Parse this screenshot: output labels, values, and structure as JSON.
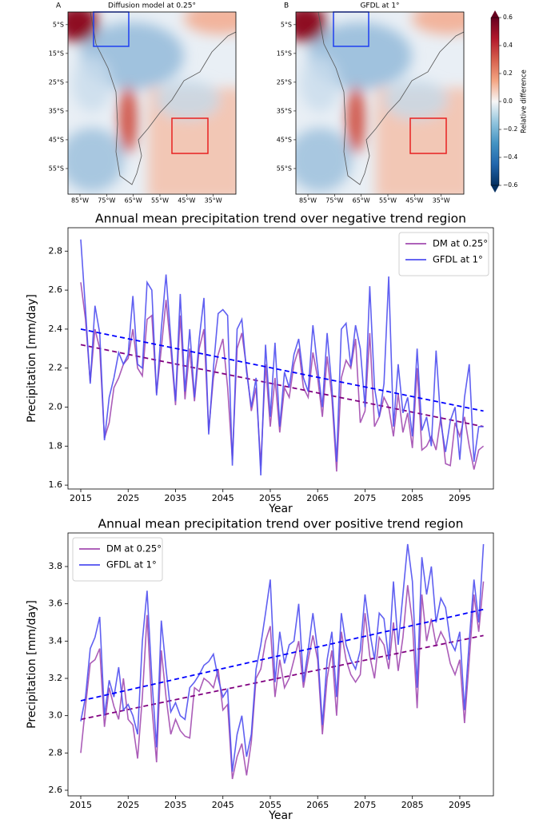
{
  "chart_data": [
    {
      "type": "map",
      "panel": "A",
      "title": "Diffusion model at 0.25°",
      "xlim": [
        -89.5,
        -26.5
      ],
      "ylim": [
        -63.9,
        -0.6
      ],
      "xticks": [
        {
          "value": -85,
          "label": "85°W"
        },
        {
          "value": -75,
          "label": "75°W"
        },
        {
          "value": -65,
          "label": "65°W"
        },
        {
          "value": -55,
          "label": "55°W"
        },
        {
          "value": -45,
          "label": "45°W"
        },
        {
          "value": -35,
          "label": "35°W"
        }
      ],
      "yticks": [
        {
          "value": -5,
          "label": "5°S"
        },
        {
          "value": -15,
          "label": "15°S"
        },
        {
          "value": -25,
          "label": "25°S"
        },
        {
          "value": -35,
          "label": "35°S"
        },
        {
          "value": -45,
          "label": "45°S"
        },
        {
          "value": -55,
          "label": "55°S"
        }
      ]
    },
    {
      "type": "map",
      "panel": "B",
      "title": "GFDL at 1°",
      "xlim": [
        -89.5,
        -26.5
      ],
      "ylim": [
        -63.9,
        -0.6
      ],
      "xticks": [
        {
          "value": -85,
          "label": "85°W"
        },
        {
          "value": -75,
          "label": "75°W"
        },
        {
          "value": -65,
          "label": "65°W"
        },
        {
          "value": -55,
          "label": "55°W"
        },
        {
          "value": -45,
          "label": "45°W"
        },
        {
          "value": -35,
          "label": "35°W"
        }
      ],
      "yticks": [
        {
          "value": -5,
          "label": "5°S"
        },
        {
          "value": -15,
          "label": "15°S"
        },
        {
          "value": -25,
          "label": "25°S"
        },
        {
          "value": -35,
          "label": "35°S"
        },
        {
          "value": -45,
          "label": "45°S"
        },
        {
          "value": -55,
          "label": "55°S"
        }
      ]
    },
    {
      "type": "line",
      "title": "Annual mean precipitation trend over negative trend region",
      "x_label": "Year",
      "y_label": "Precipitation [mm/day]",
      "legend": "upper right",
      "x": [
        2015,
        2016,
        2017,
        2018,
        2019,
        2020,
        2021,
        2022,
        2023,
        2024,
        2025,
        2026,
        2027,
        2028,
        2029,
        2030,
        2031,
        2032,
        2033,
        2034,
        2035,
        2036,
        2037,
        2038,
        2039,
        2040,
        2041,
        2042,
        2043,
        2044,
        2045,
        2046,
        2047,
        2048,
        2049,
        2050,
        2051,
        2052,
        2053,
        2054,
        2055,
        2056,
        2057,
        2058,
        2059,
        2060,
        2061,
        2062,
        2063,
        2064,
        2065,
        2066,
        2067,
        2068,
        2069,
        2070,
        2071,
        2072,
        2073,
        2074,
        2075,
        2076,
        2077,
        2078,
        2079,
        2080,
        2081,
        2082,
        2083,
        2084,
        2085,
        2086,
        2087,
        2088,
        2089,
        2090,
        2091,
        2092,
        2093,
        2094,
        2095,
        2096,
        2097,
        2098,
        2099,
        2100
      ],
      "xlim": [
        2012.3,
        2102.1
      ],
      "xticks": [
        2015,
        2025,
        2035,
        2045,
        2055,
        2065,
        2075,
        2085,
        2095
      ],
      "ylim": [
        1.58,
        2.92
      ],
      "yticks": [
        1.6,
        1.8,
        {
          "value": 2,
          "label": "2.0"
        },
        2.2,
        2.4,
        2.6,
        2.8
      ],
      "series": [
        {
          "name": "DM at 0.25°",
          "color": "#a24bb0",
          "trend_color": "#800080",
          "trend": [
            2.32,
            1.9
          ],
          "values": [
            2.64,
            2.45,
            2.13,
            2.4,
            2.3,
            1.84,
            1.92,
            2.1,
            2.15,
            2.22,
            2.25,
            2.4,
            2.2,
            2.16,
            2.45,
            2.47,
            2.07,
            2.3,
            2.55,
            2.3,
            2.01,
            2.47,
            2.04,
            2.3,
            2.03,
            2.3,
            2.4,
            1.88,
            2.15,
            2.27,
            2.35,
            2.1,
            1.73,
            2.3,
            2.38,
            2.2,
            1.98,
            2.1,
            1.7,
            2.22,
            1.9,
            2.15,
            1.87,
            2.1,
            2.05,
            2.22,
            2.3,
            2.1,
            2.05,
            2.28,
            2.15,
            1.95,
            2.26,
            2.05,
            1.67,
            2.15,
            2.24,
            2.2,
            2.35,
            1.92,
            1.98,
            2.38,
            1.9,
            1.95,
            2.05,
            2.0,
            1.85,
            2.07,
            1.87,
            1.97,
            1.79,
            2.2,
            1.78,
            1.8,
            1.85,
            1.78,
            1.95,
            1.71,
            1.7,
            1.92,
            1.85,
            1.95,
            1.8,
            1.68,
            1.78,
            1.8
          ]
        },
        {
          "name": "GFDL at 1°",
          "color": "#4f4ff0",
          "trend_color": "#0000ff",
          "trend": [
            2.4,
            1.98
          ],
          "values": [
            2.86,
            2.5,
            2.12,
            2.52,
            2.38,
            1.83,
            2.05,
            2.15,
            2.28,
            2.22,
            2.27,
            2.57,
            2.22,
            2.2,
            2.64,
            2.6,
            2.06,
            2.4,
            2.68,
            2.35,
            2.03,
            2.58,
            2.08,
            2.4,
            2.05,
            2.35,
            2.56,
            1.86,
            2.2,
            2.48,
            2.5,
            2.47,
            1.7,
            2.4,
            2.45,
            2.18,
            2.0,
            2.15,
            1.65,
            2.32,
            1.95,
            2.33,
            1.9,
            2.18,
            2.1,
            2.27,
            2.35,
            2.15,
            2.08,
            2.42,
            2.2,
            2.0,
            2.38,
            2.1,
            1.72,
            2.4,
            2.43,
            2.21,
            2.42,
            2.3,
            2.0,
            2.62,
            2.1,
            1.95,
            2.12,
            2.67,
            1.9,
            2.22,
            1.97,
            2.05,
            1.85,
            2.3,
            1.88,
            1.95,
            1.8,
            2.29,
            1.92,
            1.77,
            1.93,
            2.0,
            1.73,
            2.05,
            2.22,
            1.72,
            1.9,
            1.9
          ]
        }
      ]
    },
    {
      "type": "line",
      "title": "Annual mean precipitation trend over positive trend region",
      "x_label": "Year",
      "y_label": "Precipitation [mm/day]",
      "legend": "upper left",
      "x": [
        2015,
        2016,
        2017,
        2018,
        2019,
        2020,
        2021,
        2022,
        2023,
        2024,
        2025,
        2026,
        2027,
        2028,
        2029,
        2030,
        2031,
        2032,
        2033,
        2034,
        2035,
        2036,
        2037,
        2038,
        2039,
        2040,
        2041,
        2042,
        2043,
        2044,
        2045,
        2046,
        2047,
        2048,
        2049,
        2050,
        2051,
        2052,
        2053,
        2054,
        2055,
        2056,
        2057,
        2058,
        2059,
        2060,
        2061,
        2062,
        2063,
        2064,
        2065,
        2066,
        2067,
        2068,
        2069,
        2070,
        2071,
        2072,
        2073,
        2074,
        2075,
        2076,
        2077,
        2078,
        2079,
        2080,
        2081,
        2082,
        2083,
        2084,
        2085,
        2086,
        2087,
        2088,
        2089,
        2090,
        2091,
        2092,
        2093,
        2094,
        2095,
        2096,
        2097,
        2098,
        2099,
        2100
      ],
      "xlim": [
        2012.3,
        2102.1
      ],
      "xticks": [
        2015,
        2025,
        2035,
        2045,
        2055,
        2065,
        2075,
        2085,
        2095
      ],
      "ylim": [
        2.57,
        3.98
      ],
      "yticks": [
        2.6,
        2.8,
        {
          "value": 3,
          "label": "3.0"
        },
        3.2,
        3.4,
        3.6,
        3.8
      ],
      "series": [
        {
          "name": "DM at 0.25°",
          "color": "#a24bb0",
          "trend_color": "#800080",
          "trend": [
            2.98,
            3.43
          ],
          "values": [
            2.8,
            3.05,
            3.28,
            3.3,
            3.36,
            2.94,
            3.15,
            3.05,
            2.98,
            3.2,
            2.98,
            2.95,
            2.77,
            3.1,
            3.54,
            3.05,
            2.75,
            3.35,
            3.1,
            2.9,
            2.98,
            2.92,
            2.89,
            2.88,
            3.15,
            3.13,
            3.2,
            3.18,
            3.15,
            3.25,
            3.03,
            3.06,
            2.66,
            2.78,
            2.85,
            2.68,
            2.86,
            3.2,
            3.25,
            3.4,
            3.48,
            3.1,
            3.3,
            3.15,
            3.2,
            3.3,
            3.4,
            3.15,
            3.3,
            3.43,
            3.3,
            2.9,
            3.2,
            3.35,
            3.0,
            3.45,
            3.3,
            3.22,
            3.18,
            3.22,
            3.55,
            3.32,
            3.2,
            3.42,
            3.38,
            3.25,
            3.5,
            3.24,
            3.42,
            3.7,
            3.5,
            3.04,
            3.65,
            3.4,
            3.52,
            3.38,
            3.45,
            3.4,
            3.28,
            3.22,
            3.3,
            2.96,
            3.3,
            3.65,
            3.45,
            3.72
          ]
        },
        {
          "name": "GFDL at 1°",
          "color": "#4f4ff0",
          "trend_color": "#0000ff",
          "trend": [
            3.08,
            3.57
          ],
          "values": [
            2.97,
            3.1,
            3.36,
            3.42,
            3.53,
            3.0,
            3.19,
            3.1,
            3.26,
            3.03,
            3.06,
            3.0,
            2.9,
            3.4,
            3.67,
            3.2,
            2.83,
            3.51,
            3.25,
            3.02,
            3.07,
            3.0,
            2.98,
            3.15,
            3.18,
            3.22,
            3.27,
            3.29,
            3.33,
            3.2,
            3.1,
            3.14,
            2.7,
            2.9,
            3.0,
            2.78,
            2.9,
            3.25,
            3.38,
            3.55,
            3.73,
            3.18,
            3.45,
            3.28,
            3.38,
            3.4,
            3.6,
            3.18,
            3.35,
            3.55,
            3.35,
            2.95,
            3.3,
            3.45,
            3.1,
            3.55,
            3.38,
            3.3,
            3.25,
            3.35,
            3.65,
            3.45,
            3.3,
            3.55,
            3.52,
            3.3,
            3.72,
            3.38,
            3.65,
            3.92,
            3.72,
            3.15,
            3.85,
            3.65,
            3.8,
            3.5,
            3.63,
            3.58,
            3.4,
            3.35,
            3.45,
            3.03,
            3.4,
            3.73,
            3.5,
            3.92
          ]
        }
      ]
    }
  ],
  "colorbar": {
    "label": "Relative difference",
    "lim": [
      -0.6,
      0.6
    ],
    "ticks": [
      0.6,
      0.4,
      0.2,
      {
        "value": 0,
        "label": "0.0"
      },
      {
        "value": -0.2,
        "label": "−0.2"
      },
      {
        "value": -0.4,
        "label": "−0.4"
      },
      {
        "value": -0.6,
        "label": "−0.6"
      }
    ]
  }
}
